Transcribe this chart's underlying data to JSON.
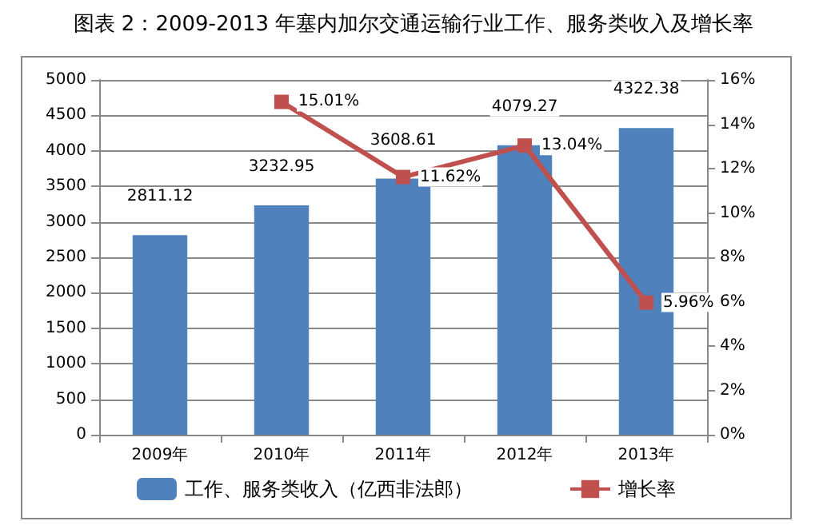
{
  "chart_data": {
    "type": "bar",
    "title": "图表 2：2009-2013 年塞内加尔交通运输行业工作、服务类收入及增长率",
    "categories": [
      "2009年",
      "2010年",
      "2011年",
      "2012年",
      "2013年"
    ],
    "series": [
      {
        "name": "工作、服务类收入（亿西非法郎）",
        "color": "#4f81bd",
        "values": [
          2811.12,
          3232.95,
          3608.61,
          4079.27,
          4322.38
        ],
        "value_labels": [
          "2811.12",
          "3232.95",
          "3608.61",
          "4079.27",
          "4322.38"
        ]
      },
      {
        "name": "增长率",
        "type": "line",
        "axis": "y2",
        "color": "#c0504d",
        "marker": "square",
        "values": [
          null,
          15.01,
          11.62,
          13.04,
          5.96
        ],
        "value_labels": [
          null,
          "15.01%",
          "11.62%",
          "13.04%",
          "5.96%"
        ]
      }
    ],
    "ylim": [
      0,
      5000
    ],
    "yticks": [
      0,
      500,
      1000,
      1500,
      2000,
      2500,
      3000,
      3500,
      4000,
      4500,
      5000
    ],
    "y2lim": [
      0,
      16
    ],
    "y2ticks": [
      {
        "value": 0,
        "label": "0%"
      },
      {
        "value": 2,
        "label": "2%"
      },
      {
        "value": 4,
        "label": "4%"
      },
      {
        "value": 6,
        "label": "6%"
      },
      {
        "value": 8,
        "label": "8%"
      },
      {
        "value": 10,
        "label": "10%"
      },
      {
        "value": 12,
        "label": "12%"
      },
      {
        "value": 14,
        "label": "14%"
      },
      {
        "value": 16,
        "label": "16%"
      }
    ],
    "grid": "y",
    "legend": "bottom"
  }
}
